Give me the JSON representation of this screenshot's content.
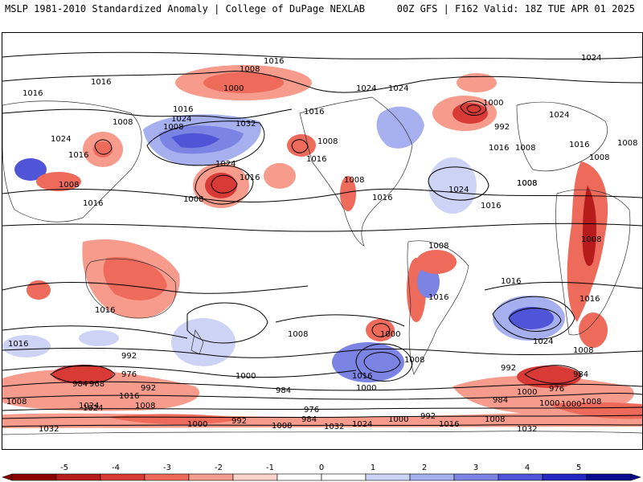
{
  "header": {
    "left": "MSLP 1981-2010 Standardized Anomaly | College of DuPage NEXLAB",
    "right": "00Z GFS | F162 Valid: 18Z TUE APR 01 2025"
  },
  "colorbar": {
    "ticks": [
      "-5",
      "-4",
      "-3",
      "-2",
      "-1",
      "0",
      "1",
      "2",
      "3",
      "4",
      "5"
    ],
    "colors": [
      "#8b0000",
      "#b71c1c",
      "#d83a36",
      "#ee6a5a",
      "#f79b8c",
      "#fcd3cb",
      "#ffffff",
      "#ffffff",
      "#cdd3f5",
      "#a7b0ef",
      "#7b83e3",
      "#4f55d6",
      "#2426c0",
      "#0a0c8f"
    ]
  },
  "isobar_labels": [
    "1016",
    "1008",
    "1000",
    "1024",
    "1016",
    "1008",
    "1016",
    "1008",
    "1024",
    "1032",
    "1016",
    "1024",
    "1008",
    "1016",
    "1016",
    "1008",
    "1016",
    "1024",
    "1024",
    "1000",
    "992",
    "1016",
    "1008",
    "1024",
    "1016",
    "1008",
    "1024",
    "1016",
    "1008",
    "1008",
    "1016",
    "1008",
    "1008",
    "1008",
    "1016",
    "1008",
    "1016",
    "1008",
    "1016",
    "1024",
    "1000",
    "1024",
    "992",
    "1008",
    "1016",
    "1008",
    "1000",
    "984",
    "1008",
    "1016",
    "1000",
    "984",
    "992",
    "1016",
    "976",
    "968",
    "984",
    "992",
    "1008",
    "1024",
    "1016",
    "1008",
    "976",
    "984",
    "1000",
    "992",
    "1000",
    "1008",
    "1032",
    "1032",
    "1016",
    "1024",
    "1032",
    "1000",
    "992",
    "1000",
    "984",
    "1016",
    "1008",
    "976",
    "1024",
    "1008",
    "1000",
    "1016"
  ]
}
